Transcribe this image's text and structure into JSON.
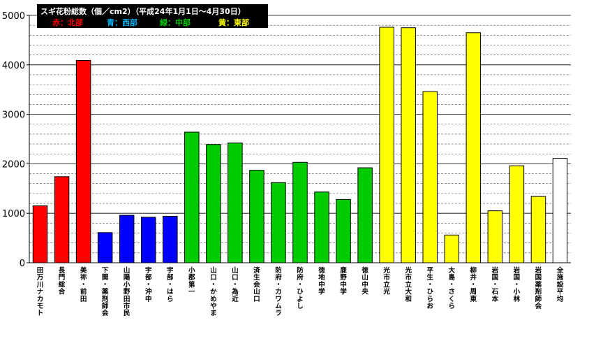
{
  "chart_data": {
    "type": "bar",
    "title": "スギ花粉総数（個／cm2）（平成24年1月1日～4月30日）",
    "legend": [
      {
        "label": "赤：北部",
        "color": "#ff0000"
      },
      {
        "label": "青：西部",
        "color": "#00b0f0"
      },
      {
        "label": "緑：中部",
        "color": "#00cc00"
      },
      {
        "label": "黄：東部",
        "color": "#ffff00"
      }
    ],
    "ylim": [
      0,
      5000
    ],
    "yticks": [
      "0",
      "1000",
      "2000",
      "3000",
      "4000",
      "5000"
    ],
    "minor_step": 200,
    "categories": [
      "田万川ナカモト",
      "長門総合",
      "美祢・前田",
      "下関・薬剤師会",
      "山陽小野田市民",
      "宇部・沖中",
      "宇部・はら",
      "小郡第一",
      "山口・かめやま",
      "山口・為近",
      "済生会山口",
      "防府・カワムラ",
      "防府・ひよし",
      "徳地中学",
      "鹿野中学",
      "徳山中央",
      "光市立光",
      "光市立大和",
      "平生・ひらお",
      "大島・さくら",
      "柳井・周東",
      "岩国・石本",
      "岩国・小林",
      "岩国薬剤師会",
      "全施設平均"
    ],
    "values": [
      1150,
      1740,
      4090,
      610,
      960,
      920,
      940,
      2640,
      2390,
      2420,
      1870,
      1620,
      2030,
      1430,
      1280,
      1920,
      4760,
      4750,
      3460,
      560,
      4650,
      1050,
      1960,
      1340,
      2110
    ],
    "colors": [
      "#ff0000",
      "#ff0000",
      "#ff0000",
      "#0000ff",
      "#0000ff",
      "#0000ff",
      "#0000ff",
      "#00cc00",
      "#00cc00",
      "#00cc00",
      "#00cc00",
      "#00cc00",
      "#00cc00",
      "#00cc00",
      "#00cc00",
      "#00cc00",
      "#ffff00",
      "#ffff00",
      "#ffff00",
      "#ffff00",
      "#ffff00",
      "#ffff00",
      "#ffff00",
      "#ffff00",
      "#ffffff"
    ]
  }
}
